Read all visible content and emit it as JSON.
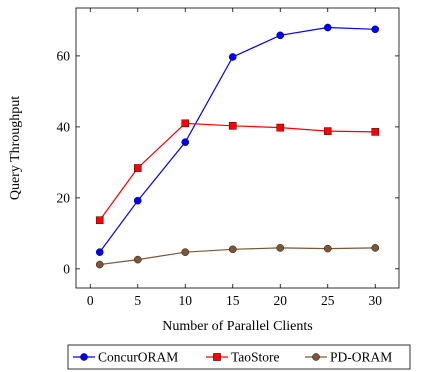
{
  "chart_data": {
    "type": "line",
    "title": "",
    "xlabel": "Number of Parallel Clients",
    "ylabel": "Query Throughput",
    "x": [
      1,
      5,
      10,
      15,
      20,
      25,
      30
    ],
    "xticks": [
      0,
      5,
      10,
      15,
      20,
      25,
      30
    ],
    "yticks": [
      0,
      20,
      40,
      60
    ],
    "xlim": [
      -1.5,
      32.5
    ],
    "ylim": [
      -5.4,
      73.5
    ],
    "grid": false,
    "legend_position": "bottom",
    "series": [
      {
        "name": "ConcurORAM",
        "color": "#0000ff",
        "marker": "circle",
        "values": [
          4.7,
          19.2,
          35.7,
          59.7,
          65.8,
          68.0,
          67.5
        ]
      },
      {
        "name": "TaoStore",
        "color": "#ff0000",
        "marker": "square",
        "values": [
          13.7,
          28.4,
          41.0,
          40.3,
          39.8,
          38.8,
          38.6
        ]
      },
      {
        "name": "PD-ORAM",
        "color": "#7f5533",
        "marker": "circle",
        "values": [
          1.2,
          2.6,
          4.7,
          5.5,
          5.9,
          5.7,
          5.9
        ]
      }
    ]
  }
}
